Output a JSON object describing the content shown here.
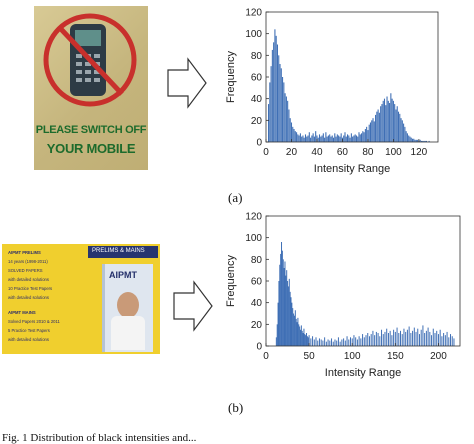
{
  "figure_a": {
    "sign_text_line1": "PLEASE SWITCH OFF",
    "sign_text_line2": "YOUR MOBILE",
    "caption": "(a)"
  },
  "figure_b": {
    "book_header": "PRELIMS & MAINS",
    "book_title": "AIPMT",
    "book_lines": [
      "AIPMT PRELIMS",
      "14 years (1998-2011)",
      "SOLVED PAPERS",
      "with detailed solutions",
      "10 Practice Test Papers",
      "with detailed solutions",
      "AIPMT MAINS",
      "Solved Papers 2010 & 2011",
      "5 Practice Test Papers",
      "with detailed solutions"
    ],
    "caption": "(b)"
  },
  "bottom_caption": "Fig. 1    Distribution of black intensities and...",
  "colors": {
    "bar": "#3f6fb5",
    "sign_bg": "#cfc089",
    "sign_text": "#1d6b2c",
    "no_symbol": "#c8302c",
    "book_bg": "#f0cf2e"
  },
  "chart_data": [
    {
      "type": "bar",
      "xlabel": "Intensity Range",
      "ylabel": "Frequency",
      "xlim": [
        0,
        135
      ],
      "ylim": [
        0,
        120
      ],
      "xticks": [
        0,
        20,
        40,
        60,
        80,
        100,
        120
      ],
      "yticks": [
        0,
        20,
        40,
        60,
        80,
        100,
        120
      ],
      "x": [
        2,
        3,
        4,
        5,
        6,
        7,
        8,
        9,
        10,
        11,
        12,
        13,
        14,
        15,
        16,
        17,
        18,
        19,
        20,
        21,
        22,
        23,
        24,
        25,
        26,
        27,
        28,
        29,
        30,
        31,
        32,
        33,
        34,
        35,
        36,
        37,
        38,
        39,
        40,
        41,
        42,
        43,
        44,
        45,
        46,
        47,
        48,
        49,
        50,
        51,
        52,
        53,
        54,
        55,
        56,
        57,
        58,
        59,
        60,
        61,
        62,
        63,
        64,
        65,
        66,
        67,
        68,
        69,
        70,
        71,
        72,
        73,
        74,
        75,
        76,
        77,
        78,
        79,
        80,
        81,
        82,
        83,
        84,
        85,
        86,
        87,
        88,
        89,
        90,
        91,
        92,
        93,
        94,
        95,
        96,
        97,
        98,
        99,
        100,
        101,
        102,
        103,
        104,
        105,
        106,
        107,
        108,
        109,
        110,
        111,
        112,
        113,
        114,
        115,
        116,
        117,
        118,
        119,
        120,
        121,
        122,
        123,
        124,
        125,
        126,
        127,
        128
      ],
      "values": [
        35,
        55,
        70,
        85,
        92,
        104,
        98,
        90,
        80,
        72,
        68,
        60,
        55,
        45,
        42,
        38,
        30,
        22,
        18,
        14,
        12,
        10,
        9,
        7,
        6,
        8,
        5,
        6,
        4,
        7,
        5,
        6,
        9,
        4,
        6,
        8,
        5,
        10,
        6,
        4,
        7,
        5,
        6,
        8,
        4,
        9,
        5,
        6,
        7,
        5,
        6,
        4,
        8,
        5,
        7,
        6,
        5,
        8,
        4,
        6,
        9,
        5,
        7,
        6,
        4,
        8,
        5,
        6,
        7,
        6,
        5,
        9,
        7,
        8,
        10,
        9,
        12,
        14,
        11,
        16,
        18,
        20,
        22,
        19,
        25,
        28,
        30,
        27,
        33,
        35,
        38,
        40,
        34,
        42,
        38,
        36,
        45,
        40,
        38,
        35,
        30,
        33,
        28,
        26,
        22,
        20,
        17,
        14,
        10,
        8,
        6,
        5,
        4,
        3,
        3,
        2,
        2,
        2,
        1,
        2,
        1,
        1,
        1,
        1,
        1,
        0,
        1
      ]
    },
    {
      "type": "bar",
      "xlabel": "Intensity Range",
      "ylabel": "Frequency",
      "xlim": [
        0,
        225
      ],
      "ylim": [
        0,
        120
      ],
      "xticks": [
        0,
        50,
        100,
        150,
        200
      ],
      "yticks": [
        0,
        20,
        40,
        60,
        80,
        100,
        120
      ],
      "x": [
        12,
        13,
        14,
        15,
        16,
        17,
        18,
        19,
        20,
        21,
        22,
        23,
        24,
        25,
        26,
        27,
        28,
        29,
        30,
        31,
        32,
        33,
        34,
        35,
        36,
        37,
        38,
        39,
        40,
        41,
        42,
        43,
        44,
        45,
        46,
        47,
        48,
        49,
        50,
        52,
        54,
        56,
        58,
        60,
        62,
        64,
        66,
        68,
        70,
        72,
        74,
        76,
        78,
        80,
        82,
        84,
        86,
        88,
        90,
        92,
        94,
        96,
        98,
        100,
        102,
        104,
        106,
        108,
        110,
        112,
        114,
        116,
        118,
        120,
        122,
        124,
        126,
        128,
        130,
        132,
        134,
        136,
        138,
        140,
        142,
        144,
        146,
        148,
        150,
        152,
        154,
        156,
        158,
        160,
        162,
        164,
        166,
        168,
        170,
        172,
        174,
        176,
        178,
        180,
        182,
        184,
        186,
        188,
        190,
        192,
        194,
        196,
        198,
        200,
        202,
        204,
        206,
        208,
        210,
        212,
        214,
        216,
        218
      ],
      "values": [
        8,
        20,
        40,
        60,
        75,
        85,
        96,
        88,
        80,
        72,
        78,
        65,
        70,
        60,
        55,
        62,
        50,
        45,
        40,
        35,
        30,
        28,
        33,
        25,
        22,
        26,
        20,
        18,
        15,
        19,
        14,
        12,
        16,
        11,
        10,
        12,
        9,
        8,
        10,
        7,
        9,
        6,
        8,
        5,
        7,
        6,
        5,
        8,
        4,
        6,
        5,
        7,
        4,
        6,
        5,
        8,
        4,
        6,
        7,
        5,
        9,
        6,
        8,
        7,
        10,
        8,
        6,
        9,
        7,
        11,
        8,
        10,
        12,
        9,
        11,
        14,
        10,
        13,
        12,
        9,
        15,
        11,
        13,
        16,
        12,
        14,
        10,
        15,
        13,
        17,
        12,
        14,
        11,
        16,
        13,
        15,
        18,
        12,
        14,
        17,
        13,
        16,
        11,
        15,
        19,
        12,
        14,
        17,
        13,
        10,
        16,
        12,
        14,
        11,
        15,
        9,
        12,
        10,
        13,
        8,
        11,
        9,
        7
      ]
    }
  ]
}
